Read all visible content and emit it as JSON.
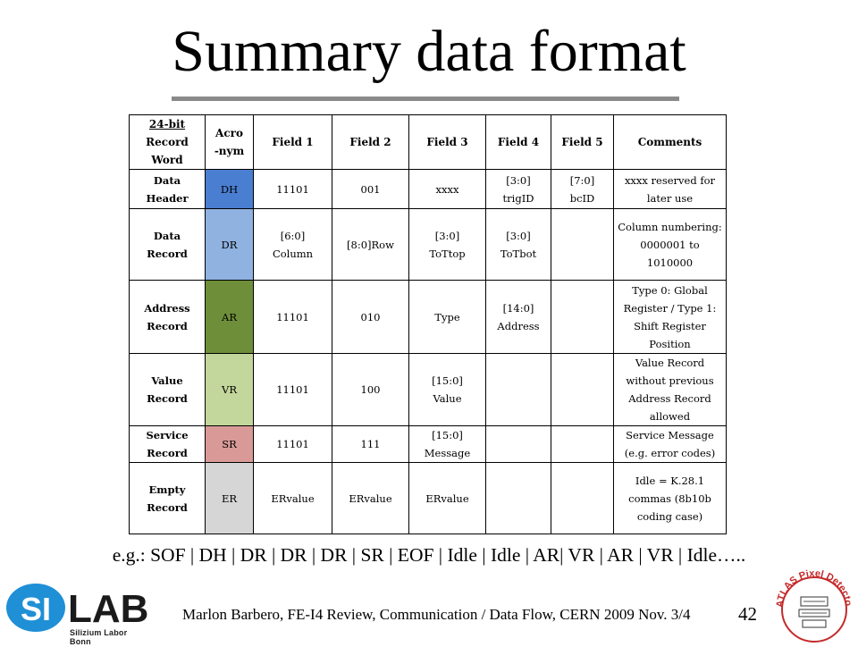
{
  "slide": {
    "title": "Summary data format",
    "example": "e.g.: SOF | DH | DR | DR | DR | SR | EOF | Idle | Idle | AR| VR | AR | VR | Idle…..",
    "footer": "Marlon Barbero, FE-I4 Review, Communication / Data Flow, CERN 2009 Nov. 3/4",
    "page_number": "42"
  },
  "table": {
    "headers": {
      "record_line1": "24-bit",
      "record_line2": "Record",
      "record_line3": "Word",
      "acro_line1": "Acro",
      "acro_line2": "-nym",
      "field1": "Field 1",
      "field2": "Field 2",
      "field3": "Field 3",
      "field4": "Field 4",
      "field5": "Field 5",
      "comments": "Comments"
    },
    "rows": [
      {
        "name1": "Data",
        "name2": "Header",
        "acronym": "DH",
        "color": "#4a7ed1",
        "field1": "11101",
        "field2": "001",
        "field3": "xxxx",
        "field4_l1": "[3:0]",
        "field4_l2": "trigID",
        "field5_l1": "[7:0]",
        "field5_l2": "bcID",
        "comments": "xxxx reserved for later use"
      },
      {
        "name1": "Data",
        "name2": "Record",
        "acronym": "DR",
        "color": "#8fb2e0",
        "field1_l1": "[6:0]",
        "field1_l2": "Column",
        "field2": "[8:0]Row",
        "field3_l1": "[3:0]",
        "field3_l2": "ToTtop",
        "field4_l1": "[3:0]",
        "field4_l2": "ToTbot",
        "field5": "",
        "comments": "Column numbering: 0000001 to 1010000"
      },
      {
        "name1": "Address",
        "name2": "Record",
        "acronym": "AR",
        "color": "#6e8e3a",
        "field1": "11101",
        "field2": "010",
        "field3": "Type",
        "field4_l1": "[14:0]",
        "field4_l2": "Address",
        "field5": "",
        "comments": "Type 0: Global Register / Type 1: Shift Register Position"
      },
      {
        "name1": "Value",
        "name2": "Record",
        "acronym": "VR",
        "color": "#c3d69b",
        "field1": "11101",
        "field2": "100",
        "field3_l1": "[15:0]",
        "field3_l2": "Value",
        "field4": "",
        "field5": "",
        "comments": "Value Record without previous Address Record allowed"
      },
      {
        "name1": "Service",
        "name2": "Record",
        "acronym": "SR",
        "color": "#d99a97",
        "field1": "11101",
        "field2": "111",
        "field3_l1": "[15:0]",
        "field3_l2": "Message",
        "field4": "",
        "field5": "",
        "comments": "Service Message (e.g. error codes)"
      },
      {
        "name1": "Empty",
        "name2": "Record",
        "acronym": "ER",
        "color": "#d6d6d6",
        "field1": "ERvalue",
        "field2": "ERvalue",
        "field3": "ERvalue",
        "field4": "",
        "field5": "",
        "comments": "Idle = K.28.1 commas (8b10b coding case)"
      }
    ]
  },
  "logos": {
    "silab": "SILAB",
    "silab_sub": "Silizium Labor Bonn",
    "atlas": "ATLAS Pixel Detector Collaboration"
  }
}
